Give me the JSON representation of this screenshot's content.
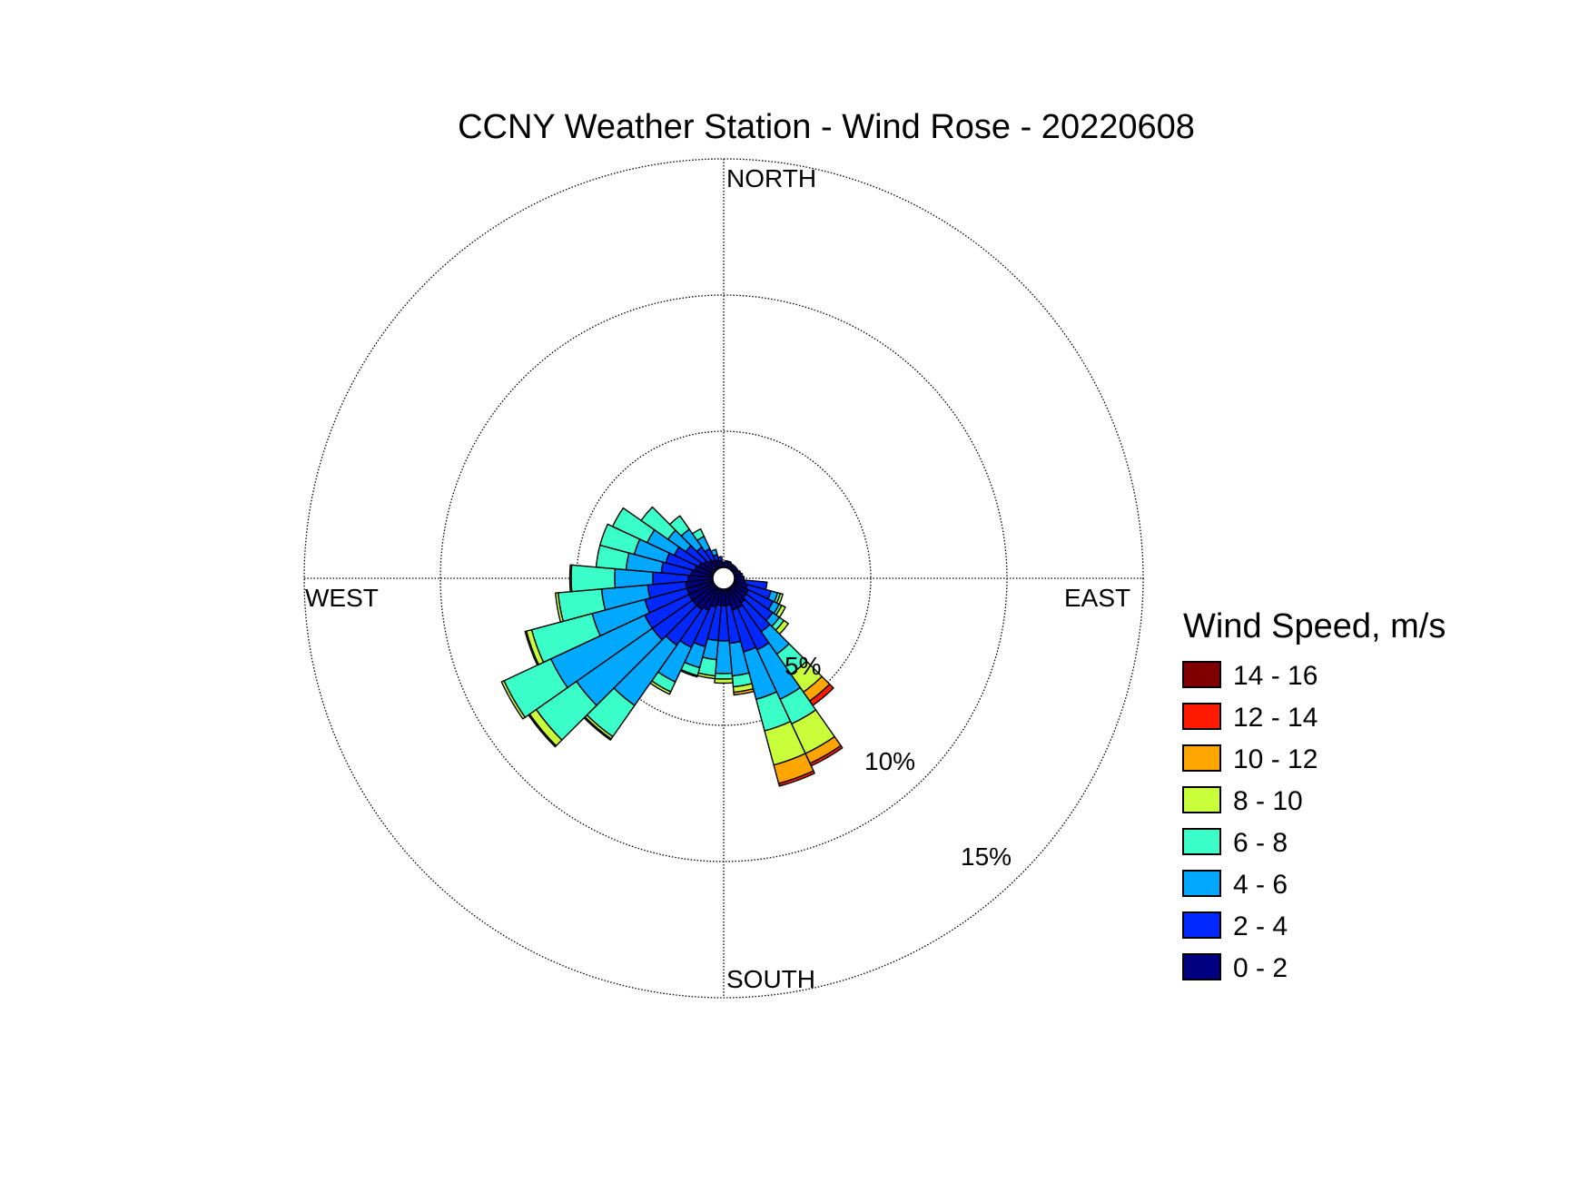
{
  "chart_data": {
    "type": "wind_rose",
    "title": "CCNY Weather Station - Wind Rose - 20220608",
    "directions_labels": {
      "north": "NORTH",
      "south": "SOUTH",
      "east": "EAST",
      "west": "WEST"
    },
    "radial_ticks": [
      {
        "value": 5,
        "label": "5%"
      },
      {
        "value": 10,
        "label": "10%"
      },
      {
        "value": 15,
        "label": "15%"
      }
    ],
    "radial_max": 15,
    "legend": {
      "title": "Wind Speed, m/s",
      "bins": [
        {
          "label": "14 - 16",
          "color": "#800000"
        },
        {
          "label": "12 - 14",
          "color": "#ff1a00"
        },
        {
          "label": "10 - 12",
          "color": "#ffa500"
        },
        {
          "label": "8 - 10",
          "color": "#c8ff3a"
        },
        {
          "label": "6 - 8",
          "color": "#3affc8"
        },
        {
          "label": "4 - 6",
          "color": "#00a8ff"
        },
        {
          "label": "2 - 4",
          "color": "#0028ff"
        },
        {
          "label": "0 - 2",
          "color": "#000080"
        }
      ]
    },
    "sector_width_deg": 10,
    "bin_order": [
      "0 - 2",
      "2 - 4",
      "4 - 6",
      "6 - 8",
      "8 - 10",
      "10 - 12",
      "12 - 14",
      "14 - 16"
    ],
    "sectors": [
      {
        "dir": 0,
        "cum": [
          0.2
        ]
      },
      {
        "dir": 10,
        "cum": [
          0.25
        ]
      },
      {
        "dir": 20,
        "cum": [
          0.25
        ]
      },
      {
        "dir": 30,
        "cum": [
          0.2
        ]
      },
      {
        "dir": 40,
        "cum": [
          0.2
        ]
      },
      {
        "dir": 50,
        "cum": [
          0.2
        ]
      },
      {
        "dir": 60,
        "cum": [
          0.2
        ]
      },
      {
        "dir": 70,
        "cum": [
          0.25
        ]
      },
      {
        "dir": 80,
        "cum": [
          0.3
        ]
      },
      {
        "dir": 90,
        "cum": [
          0.35
        ]
      },
      {
        "dir": 100,
        "cum": [
          0.4,
          1.2
        ]
      },
      {
        "dir": 110,
        "cum": [
          0.5,
          1.4,
          1.65,
          1.75,
          1.85
        ]
      },
      {
        "dir": 120,
        "cum": [
          0.6,
          1.6,
          1.85,
          1.95,
          2.1
        ]
      },
      {
        "dir": 130,
        "cum": [
          0.6,
          1.8,
          2.1,
          2.3,
          2.5
        ]
      },
      {
        "dir": 140,
        "cum": [
          0.7,
          2.0,
          3.0,
          3.9,
          4.7,
          5.1,
          5.3
        ]
      },
      {
        "dir": 150,
        "cum": [
          0.8,
          2.5,
          4.5,
          5.5,
          6.7,
          7.1,
          7.2
        ]
      },
      {
        "dir": 160,
        "cum": [
          0.8,
          2.4,
          4.2,
          5.4,
          6.7,
          7.4,
          7.5
        ]
      },
      {
        "dir": 170,
        "cum": [
          0.6,
          2.0,
          3.2,
          3.6,
          3.8,
          3.9
        ]
      },
      {
        "dir": 180,
        "cum": [
          0.6,
          1.9,
          3.1,
          3.3,
          3.45
        ]
      },
      {
        "dir": 190,
        "cum": [
          0.6,
          1.9,
          2.6,
          3.2,
          3.3
        ]
      },
      {
        "dir": 200,
        "cum": [
          0.7,
          2.2,
          3.0,
          3.3,
          3.35
        ]
      },
      {
        "dir": 210,
        "cum": [
          0.9,
          2.4,
          3.8,
          4.2,
          4.3
        ]
      },
      {
        "dir": 220,
        "cum": [
          1.0,
          2.6,
          5.3,
          6.7,
          6.8,
          6.85
        ]
      },
      {
        "dir": 230,
        "cum": [
          1.0,
          2.8,
          6.2,
          8.0,
          8.3,
          8.35
        ]
      },
      {
        "dir": 240,
        "cum": [
          1.0,
          2.8,
          6.6,
          8.5,
          8.6
        ]
      },
      {
        "dir": 250,
        "cum": [
          1.0,
          2.6,
          4.6,
          6.9,
          7.1,
          7.15
        ]
      },
      {
        "dir": 260,
        "cum": [
          1.0,
          2.4,
          4.1,
          5.7,
          5.8
        ]
      },
      {
        "dir": 270,
        "cum": [
          0.9,
          2.2,
          3.6,
          5.2,
          5.25
        ]
      },
      {
        "dir": 280,
        "cum": [
          0.8,
          1.9,
          3.2,
          4.3
        ]
      },
      {
        "dir": 290,
        "cum": [
          0.7,
          1.8,
          3.0,
          4.3
        ]
      },
      {
        "dir": 300,
        "cum": [
          0.6,
          1.6,
          2.7,
          4.1
        ]
      },
      {
        "dir": 310,
        "cum": [
          0.5,
          1.3,
          2.1,
          3.3
        ]
      },
      {
        "dir": 320,
        "cum": [
          0.4,
          1.0,
          1.8,
          2.4
        ]
      },
      {
        "dir": 330,
        "cum": [
          0.35,
          0.8,
          1.3,
          1.6
        ]
      },
      {
        "dir": 340,
        "cum": [
          0.3,
          0.5,
          0.7
        ]
      },
      {
        "dir": 350,
        "cum": [
          0.25,
          0.4
        ]
      }
    ]
  }
}
